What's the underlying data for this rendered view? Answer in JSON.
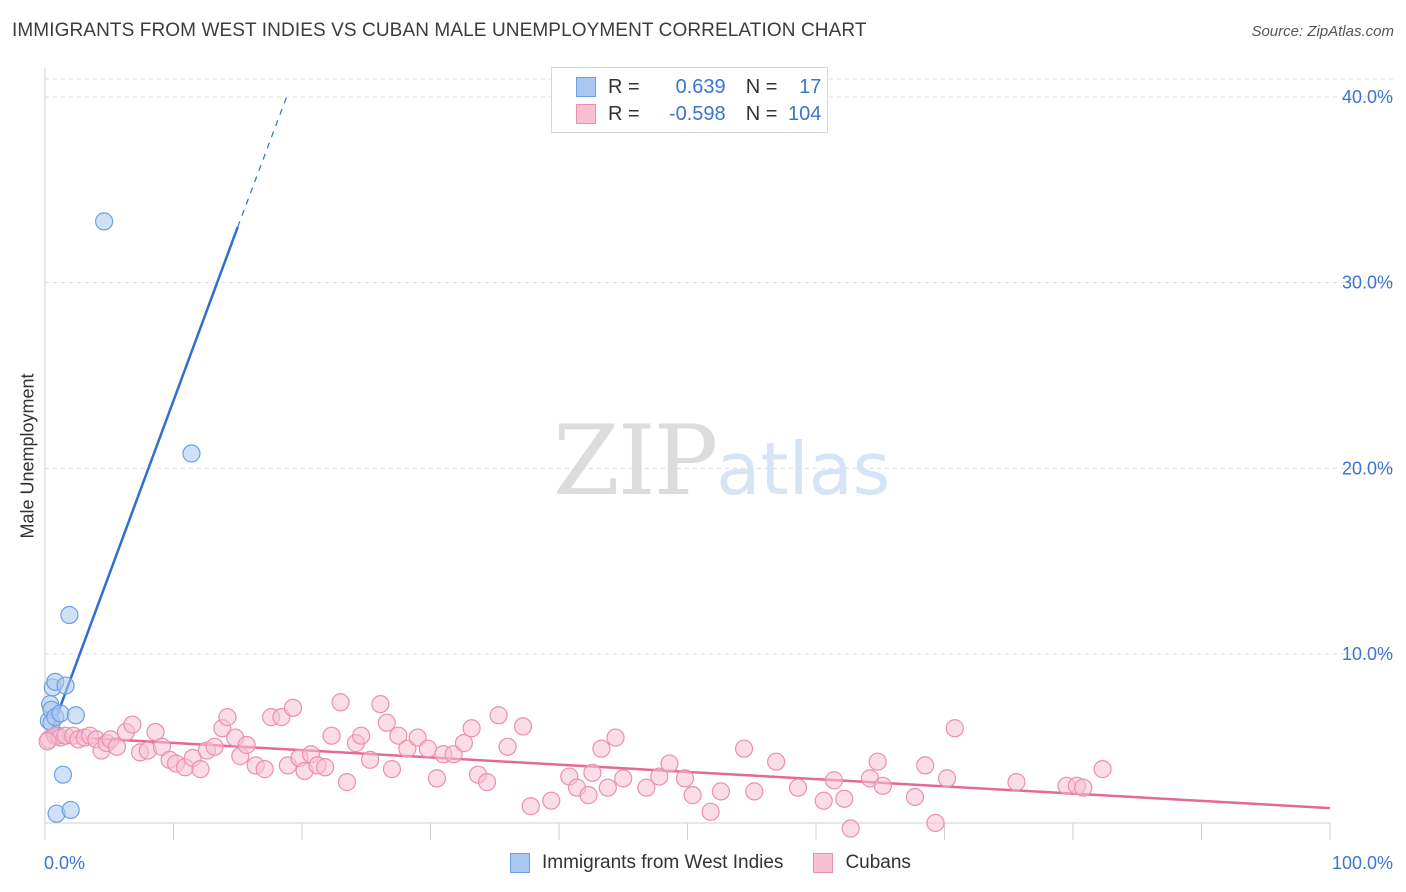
{
  "header": {
    "title": "IMMIGRANTS FROM WEST INDIES VS CUBAN MALE UNEMPLOYMENT CORRELATION CHART",
    "source": "Source: ZipAtlas.com"
  },
  "watermark": {
    "zip": "ZIP",
    "atlas": "atlas"
  },
  "legend": {
    "rows": [
      {
        "r_label": "R =",
        "r_value": "0.639",
        "n_label": "N =",
        "n_value": "17",
        "color": "#a9c8f0",
        "border": "#6f9fe0"
      },
      {
        "r_label": "R =",
        "r_value": "-0.598",
        "n_label": "N =",
        "n_value": "104",
        "color": "#f7c1d2",
        "border": "#ec8fae"
      }
    ]
  },
  "bottom_legend": {
    "items": [
      {
        "label": "Immigrants from West Indies",
        "color": "#a9c8f0",
        "border": "#6f9fe0"
      },
      {
        "label": "Cubans",
        "color": "#f7c1d2",
        "border": "#ec8fae"
      }
    ]
  },
  "chart_data": {
    "type": "scatter",
    "title": "IMMIGRANTS FROM WEST INDIES VS CUBAN MALE UNEMPLOYMENT CORRELATION CHART",
    "xlabel": "",
    "ylabel": "Male Unemployment",
    "xlim": [
      0,
      100
    ],
    "ylim": [
      0,
      42
    ],
    "x_tick_labels": [
      "0.0%",
      "100.0%"
    ],
    "y_ticks": [
      10,
      20,
      30,
      40
    ],
    "y_tick_labels": [
      "10.0%",
      "20.0%",
      "30.0%",
      "40.0%"
    ],
    "grid": true,
    "series": [
      {
        "name": "Immigrants from West Indies",
        "color": "#6f9fe0",
        "fill": "#a9c8f0",
        "line_color": "#2f6fd0",
        "points": [
          [
            0.3,
            6.4
          ],
          [
            0.4,
            7.3
          ],
          [
            0.5,
            7.0
          ],
          [
            0.5,
            6.3
          ],
          [
            0.6,
            8.2
          ],
          [
            0.8,
            8.5
          ],
          [
            0.8,
            6.6
          ],
          [
            0.9,
            1.4
          ],
          [
            1.0,
            5.6
          ],
          [
            1.2,
            6.8
          ],
          [
            1.4,
            3.5
          ],
          [
            1.6,
            8.3
          ],
          [
            1.9,
            12.1
          ],
          [
            2.0,
            1.6
          ],
          [
            2.4,
            6.7
          ],
          [
            4.6,
            33.3
          ],
          [
            11.4,
            20.8
          ]
        ],
        "trend": {
          "x0": 0.3,
          "y0": 5.5,
          "x1": 15.0,
          "y1": 33.0,
          "dash_x1": 18.8,
          "dash_y1": 40.0
        }
      },
      {
        "name": "Cubans",
        "color": "#ec8fae",
        "fill": "#f7c1d2",
        "line_color": "#e46a94",
        "points": [
          [
            0.3,
            5.4
          ],
          [
            0.8,
            5.6
          ],
          [
            1.2,
            5.5
          ],
          [
            1.6,
            5.6
          ],
          [
            2.2,
            5.6
          ],
          [
            2.6,
            5.4
          ],
          [
            3.1,
            5.5
          ],
          [
            3.5,
            5.6
          ],
          [
            4.0,
            5.4
          ],
          [
            4.4,
            4.8
          ],
          [
            4.8,
            5.2
          ],
          [
            5.1,
            5.4
          ],
          [
            5.6,
            5.0
          ],
          [
            6.3,
            5.8
          ],
          [
            6.8,
            6.2
          ],
          [
            7.4,
            4.7
          ],
          [
            8.0,
            4.8
          ],
          [
            8.6,
            5.8
          ],
          [
            9.1,
            5.0
          ],
          [
            9.7,
            4.3
          ],
          [
            10.2,
            4.1
          ],
          [
            10.9,
            3.9
          ],
          [
            11.5,
            4.4
          ],
          [
            12.1,
            3.8
          ],
          [
            12.6,
            4.8
          ],
          [
            13.2,
            5.0
          ],
          [
            13.8,
            6.0
          ],
          [
            14.2,
            6.6
          ],
          [
            14.8,
            5.5
          ],
          [
            15.2,
            4.5
          ],
          [
            15.7,
            5.1
          ],
          [
            16.4,
            4.0
          ],
          [
            17.1,
            3.8
          ],
          [
            17.6,
            6.6
          ],
          [
            18.4,
            6.6
          ],
          [
            18.9,
            4.0
          ],
          [
            19.3,
            7.1
          ],
          [
            19.8,
            4.4
          ],
          [
            20.2,
            3.7
          ],
          [
            20.7,
            4.6
          ],
          [
            21.2,
            4.0
          ],
          [
            21.8,
            3.9
          ],
          [
            22.3,
            5.6
          ],
          [
            23.0,
            7.4
          ],
          [
            23.5,
            3.1
          ],
          [
            24.2,
            5.2
          ],
          [
            24.6,
            5.6
          ],
          [
            25.3,
            4.3
          ],
          [
            26.1,
            7.3
          ],
          [
            26.6,
            6.3
          ],
          [
            27.0,
            3.8
          ],
          [
            27.5,
            5.6
          ],
          [
            28.2,
            4.9
          ],
          [
            29.0,
            5.5
          ],
          [
            29.8,
            4.9
          ],
          [
            30.5,
            3.3
          ],
          [
            31.0,
            4.6
          ],
          [
            31.8,
            4.6
          ],
          [
            32.6,
            5.2
          ],
          [
            33.2,
            6.0
          ],
          [
            33.7,
            3.5
          ],
          [
            34.4,
            3.1
          ],
          [
            35.3,
            6.7
          ],
          [
            36.0,
            5.0
          ],
          [
            37.2,
            6.1
          ],
          [
            37.8,
            1.8
          ],
          [
            39.4,
            2.1
          ],
          [
            40.8,
            3.4
          ],
          [
            41.4,
            2.8
          ],
          [
            42.3,
            2.4
          ],
          [
            42.6,
            3.6
          ],
          [
            43.3,
            4.9
          ],
          [
            43.8,
            2.8
          ],
          [
            44.4,
            5.5
          ],
          [
            45.0,
            3.3
          ],
          [
            46.8,
            2.8
          ],
          [
            47.8,
            3.4
          ],
          [
            48.6,
            4.1
          ],
          [
            49.8,
            3.3
          ],
          [
            50.4,
            2.4
          ],
          [
            51.8,
            1.5
          ],
          [
            52.6,
            2.6
          ],
          [
            54.4,
            4.9
          ],
          [
            55.2,
            2.6
          ],
          [
            56.9,
            4.2
          ],
          [
            58.6,
            2.8
          ],
          [
            60.6,
            2.1
          ],
          [
            61.4,
            3.2
          ],
          [
            62.2,
            2.2
          ],
          [
            62.7,
            0.6
          ],
          [
            64.2,
            3.3
          ],
          [
            64.8,
            4.2
          ],
          [
            65.2,
            2.9
          ],
          [
            67.7,
            2.3
          ],
          [
            68.5,
            4.0
          ],
          [
            69.3,
            0.9
          ],
          [
            70.2,
            3.3
          ],
          [
            70.8,
            6.0
          ],
          [
            75.6,
            3.1
          ],
          [
            79.5,
            2.9
          ],
          [
            80.3,
            2.9
          ],
          [
            80.8,
            2.8
          ],
          [
            82.3,
            3.8
          ],
          [
            0.2,
            5.3
          ]
        ],
        "trend": {
          "x0": 0,
          "y0": 5.6,
          "x1": 100,
          "y1": 1.7
        }
      }
    ]
  }
}
